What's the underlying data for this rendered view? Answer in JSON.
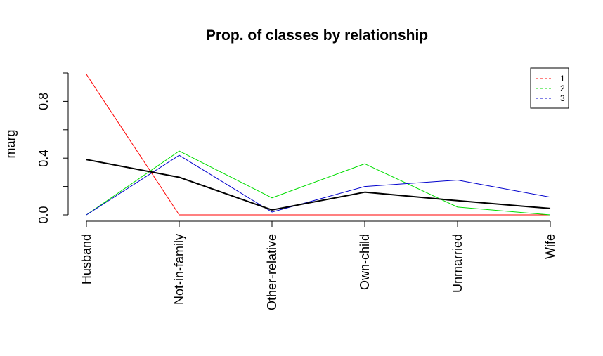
{
  "chart_data": {
    "type": "line",
    "title": "Prop. of classes by relationship",
    "xlabel": "",
    "ylabel": "marg",
    "categories": [
      "Husband",
      "Not-in-family",
      "Other-relative",
      "Own-child",
      "Unmarried",
      "Wife"
    ],
    "ylim": [
      0,
      1
    ],
    "yticks": [
      "0.0",
      "0.4",
      "0.8"
    ],
    "series": [
      {
        "name": "1",
        "color": "#ff0000",
        "values": [
          0.99,
          0.0,
          0.0,
          0.0,
          0.0,
          0.0
        ]
      },
      {
        "name": "2",
        "color": "#00dd00",
        "values": [
          0.0,
          0.45,
          0.12,
          0.36,
          0.055,
          0.0
        ]
      },
      {
        "name": "3",
        "color": "#0000cc",
        "values": [
          0.0,
          0.42,
          0.02,
          0.2,
          0.245,
          0.125
        ]
      },
      {
        "name": "",
        "color": "#000000",
        "values": [
          0.39,
          0.265,
          0.035,
          0.16,
          0.1,
          0.045
        ]
      }
    ],
    "legend_position": "top-right",
    "grid": false
  }
}
